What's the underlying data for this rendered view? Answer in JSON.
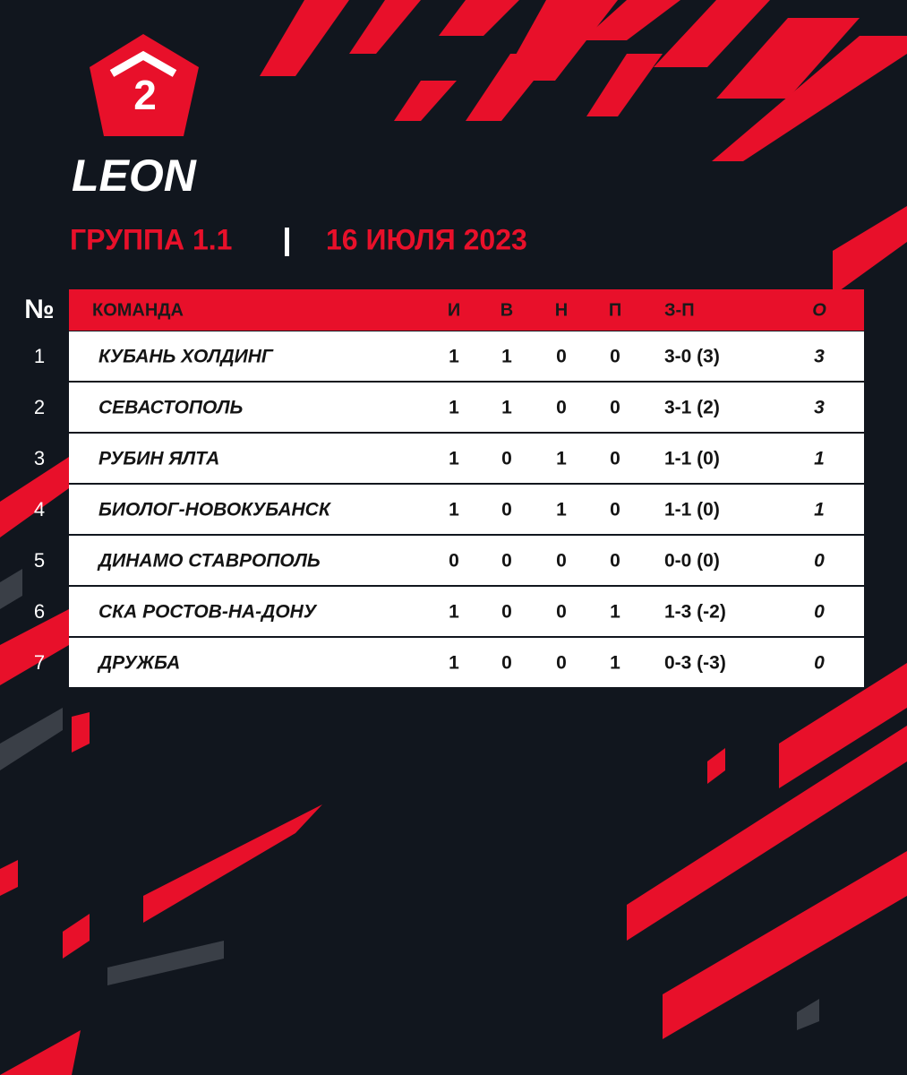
{
  "logo": {
    "number": "2",
    "brand": "LEON"
  },
  "header": {
    "group": "ГРУППА 1.1",
    "date": "16 ИЮЛЯ 2023"
  },
  "table": {
    "columns": [
      "№",
      "КОМАНДА",
      "И",
      "В",
      "Н",
      "П",
      "З-П",
      "О"
    ],
    "rows": [
      [
        1,
        "КУБАНЬ ХОЛДИНГ",
        1,
        1,
        0,
        0,
        "3-0 (3)",
        3
      ],
      [
        2,
        "СЕВАСТОПОЛЬ",
        1,
        1,
        0,
        0,
        "3-1 (2)",
        3
      ],
      [
        3,
        "РУБИН ЯЛТА",
        1,
        0,
        1,
        0,
        "1-1 (0)",
        1
      ],
      [
        4,
        "БИОЛОГ-НОВОКУБАНСК",
        1,
        0,
        1,
        0,
        "1-1 (0)",
        1
      ],
      [
        5,
        "ДИНАМО СТАВРОПОЛЬ",
        0,
        0,
        0,
        0,
        "0-0 (0)",
        0
      ],
      [
        6,
        "СКА РОСТОВ-НА-ДОНУ",
        1,
        0,
        0,
        1,
        "1-3 (-2)",
        0
      ],
      [
        7,
        "ДРУЖБА",
        1,
        0,
        0,
        1,
        "0-3 (-3)",
        0
      ]
    ]
  }
}
